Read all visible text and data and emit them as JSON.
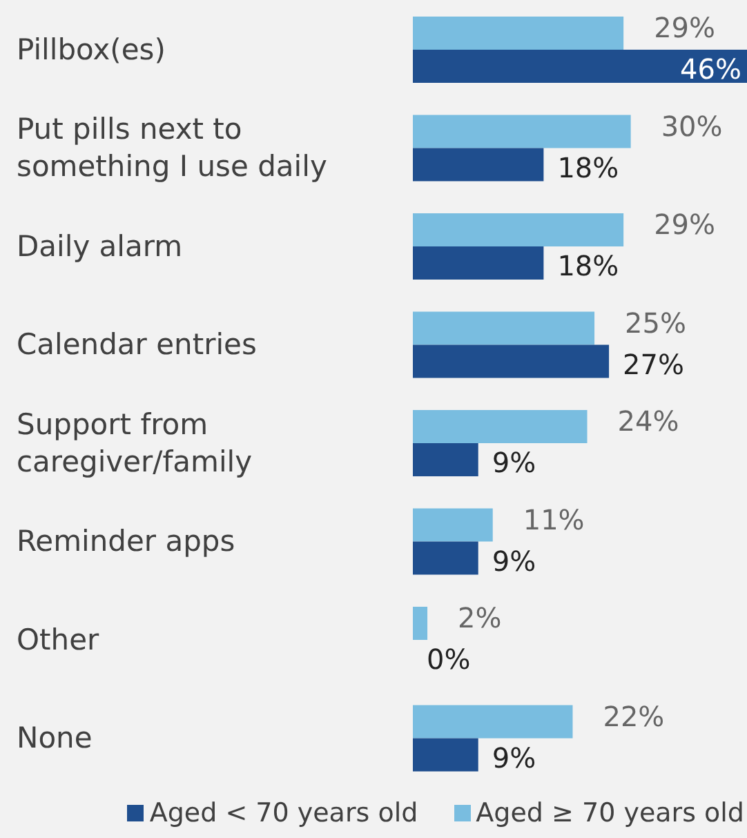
{
  "chart_data": {
    "type": "bar",
    "orientation": "horizontal",
    "categories": [
      "Pillbox(es)",
      "Put pills next to something I use daily",
      "Daily alarm",
      "Calendar entries",
      "Support from caregiver/family",
      "Reminder apps",
      "Other",
      "None"
    ],
    "series": [
      {
        "name": "Aged < 70 years old",
        "color": "#1f4e8e",
        "values": [
          46,
          18,
          18,
          27,
          9,
          9,
          0,
          9
        ],
        "value_labels": [
          "46%",
          "18%",
          "18%",
          "27%",
          "9%",
          "9%",
          "0%",
          "9%"
        ]
      },
      {
        "name": "Aged ≥ 70 years old",
        "color": "#79bde0",
        "values": [
          29,
          30,
          29,
          25,
          24,
          11,
          2,
          22
        ],
        "value_labels": [
          "29%",
          "30%",
          "29%",
          "25%",
          "24%",
          "11%",
          "2%",
          "22%"
        ]
      }
    ],
    "legend": "bottom",
    "grid": false
  }
}
